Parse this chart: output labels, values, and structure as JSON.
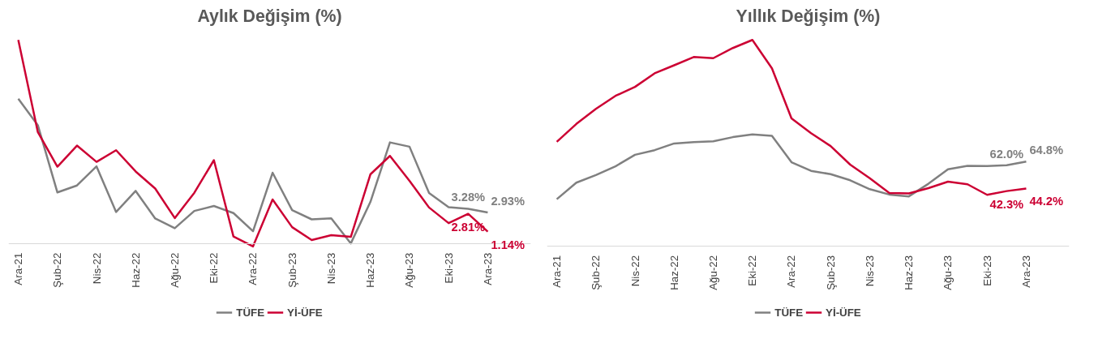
{
  "chart_data": [
    {
      "type": "line",
      "title": "Aylık Değişim (%)",
      "categories": [
        "Ara-21",
        null,
        "Şub-22",
        null,
        "Nis-22",
        null,
        "Haz-22",
        null,
        "Ağu-22",
        null,
        "Eki-22",
        null,
        "Ara-22",
        null,
        "Şub-23",
        null,
        "Nis-23",
        null,
        "Haz-23",
        null,
        "Ağu-23",
        null,
        "Eki-23",
        null,
        "Ara-23"
      ],
      "legend": "bottom",
      "grid": false,
      "series": [
        {
          "name": "TÜFE",
          "color": "#808080",
          "values": [
            13.58,
            11.1,
            4.81,
            5.46,
            7.25,
            2.98,
            4.95,
            2.37,
            1.46,
            3.08,
            3.54,
            2.88,
            1.18,
            6.65,
            3.15,
            2.29,
            2.39,
            0.04,
            3.92,
            9.49,
            9.09,
            4.75,
            3.43,
            3.28,
            2.93
          ],
          "value_labels": [
            null,
            null,
            null,
            null,
            null,
            null,
            null,
            null,
            null,
            null,
            null,
            null,
            null,
            null,
            null,
            null,
            null,
            null,
            null,
            null,
            null,
            null,
            null,
            "3.28%",
            "2.93%"
          ]
        },
        {
          "name": "Yİ-ÜFE",
          "color": "#cc0033",
          "values": [
            19.08,
            10.45,
            7.22,
            9.19,
            7.67,
            8.76,
            6.77,
            5.17,
            2.41,
            4.78,
            7.83,
            0.69,
            -0.24,
            4.15,
            1.56,
            0.35,
            0.81,
            0.65,
            6.5,
            8.23,
            5.89,
            3.4,
            1.94,
            2.81,
            1.14
          ],
          "value_labels": [
            null,
            null,
            null,
            null,
            null,
            null,
            null,
            null,
            null,
            null,
            null,
            null,
            null,
            null,
            null,
            null,
            null,
            null,
            null,
            null,
            null,
            null,
            null,
            "2.81%",
            "1.14%"
          ]
        }
      ]
    },
    {
      "type": "line",
      "title": "Yıllık Değişim (%)",
      "categories": [
        "Ara-21",
        null,
        "Şub-22",
        null,
        "Nis-22",
        null,
        "Haz-22",
        null,
        "Ağu-22",
        null,
        "Eki-22",
        null,
        "Ara-22",
        null,
        "Şub-23",
        null,
        "Nis-23",
        null,
        "Haz-23",
        null,
        "Ağu-23",
        null,
        "Eki-23",
        null,
        "Ara-23"
      ],
      "legend": "bottom",
      "grid": false,
      "series": [
        {
          "name": "TÜFE",
          "color": "#808080",
          "values": [
            36.08,
            48.69,
            54.44,
            61.14,
            69.97,
            73.5,
            78.62,
            79.6,
            80.21,
            83.45,
            85.51,
            84.39,
            64.27,
            57.68,
            55.18,
            50.51,
            43.68,
            39.59,
            38.21,
            47.83,
            58.94,
            61.53,
            61.36,
            61.98,
            64.77
          ],
          "value_labels": [
            null,
            null,
            null,
            null,
            null,
            null,
            null,
            null,
            null,
            null,
            null,
            null,
            null,
            null,
            null,
            null,
            null,
            null,
            null,
            null,
            null,
            null,
            null,
            "62.0%",
            "64.8%"
          ]
        },
        {
          "name": "Yİ-ÜFE",
          "color": "#cc0033",
          "values": [
            79.89,
            93.53,
            105.01,
            114.97,
            121.82,
            132.16,
            138.31,
            144.61,
            143.75,
            151.5,
            157.69,
            136.02,
            97.72,
            86.46,
            76.61,
            62.45,
            52.11,
            40.76,
            40.42,
            44.5,
            49.41,
            47.44,
            39.39,
            42.25,
            44.22
          ],
          "value_labels": [
            null,
            null,
            null,
            null,
            null,
            null,
            null,
            null,
            null,
            null,
            null,
            null,
            null,
            null,
            null,
            null,
            null,
            null,
            null,
            null,
            null,
            null,
            null,
            "42.3%",
            "44.2%"
          ]
        }
      ]
    }
  ]
}
